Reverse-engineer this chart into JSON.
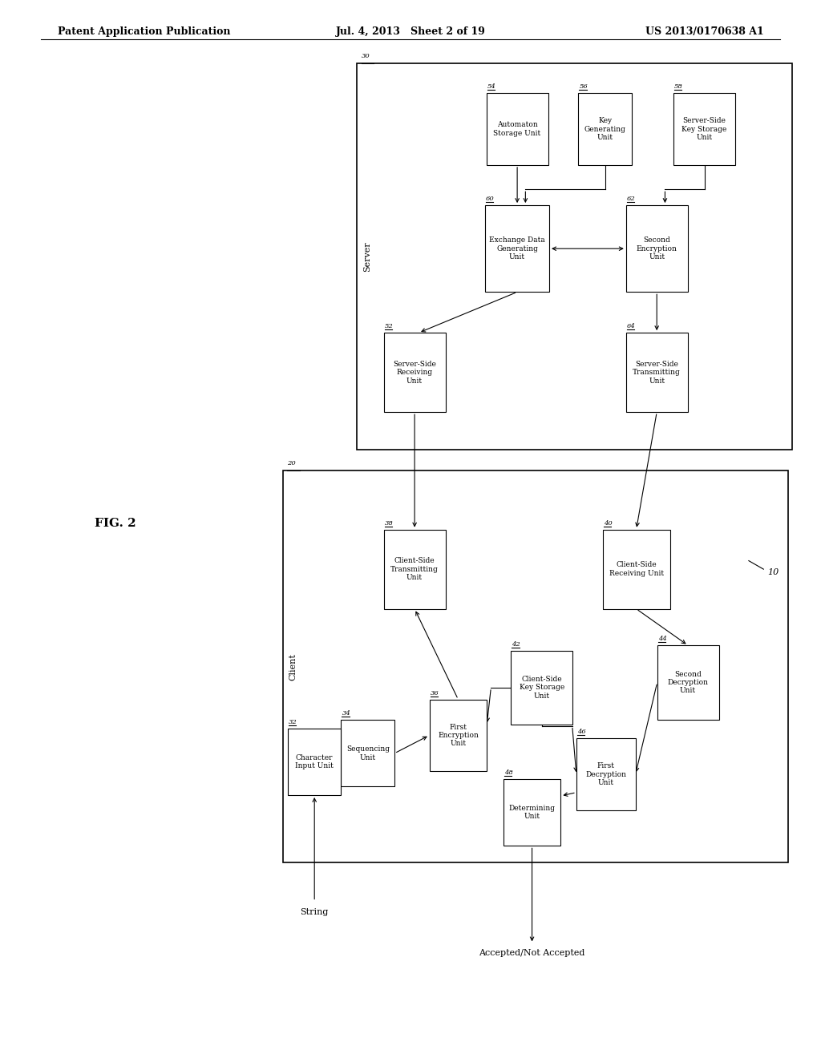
{
  "title_left": "Patent Application Publication",
  "title_center": "Jul. 4, 2013   Sheet 2 of 19",
  "title_right": "US 2013/0170638 A1",
  "fig_label": "FIG. 2",
  "bg_color": "#ffffff",
  "line_color": "#000000"
}
